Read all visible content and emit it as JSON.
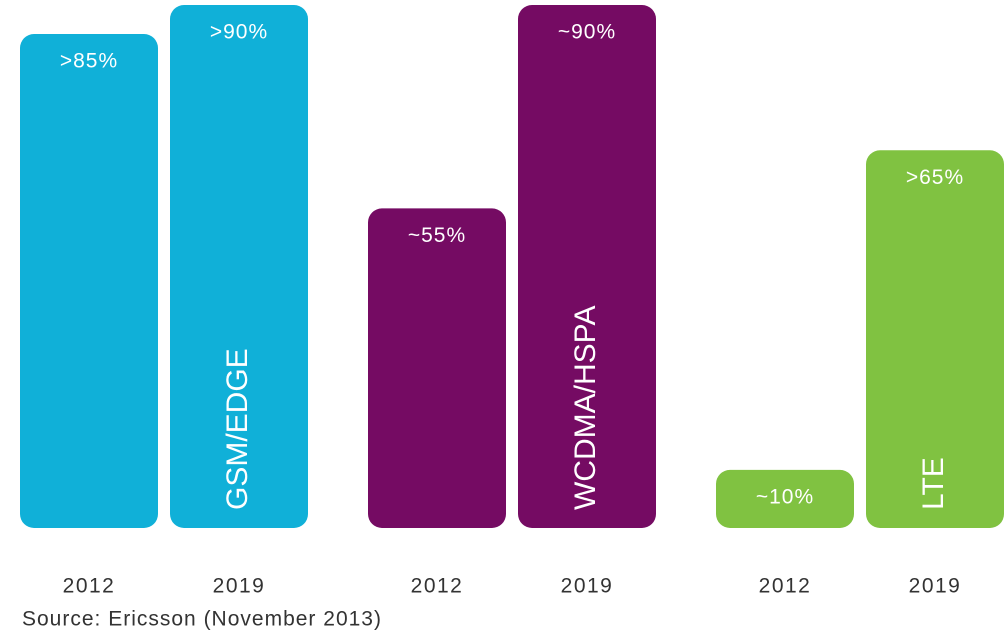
{
  "chart_data": {
    "type": "bar",
    "source": "Source: Ericsson (November 2013)",
    "groups": [
      {
        "name": "GSM/EDGE",
        "color": "#10b0d8",
        "categories": [
          "2012",
          "2019"
        ],
        "values": [
          85,
          90
        ],
        "value_labels": [
          ">85%",
          ">90%"
        ]
      },
      {
        "name": "WCDMA/HSPA",
        "color": "#750b63",
        "categories": [
          "2012",
          "2019"
        ],
        "values": [
          55,
          90
        ],
        "value_labels": [
          "~55%",
          "~90%"
        ]
      },
      {
        "name": "LTE",
        "color": "#80c241",
        "categories": [
          "2012",
          "2019"
        ],
        "values": [
          10,
          65
        ],
        "value_labels": [
          "~10%",
          ">65%"
        ]
      }
    ]
  }
}
